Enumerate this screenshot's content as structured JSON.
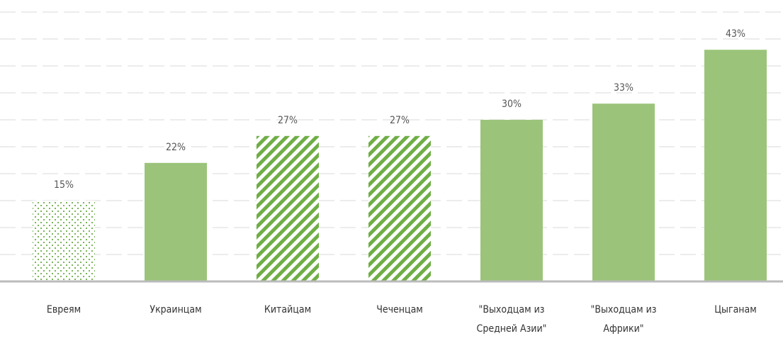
{
  "chart_data": {
    "type": "bar",
    "categories": [
      "Евреям",
      "Украинцам",
      "Китайцам",
      "Чеченцам",
      "\"Выходцам из Средней Азии\"",
      "\"Выходцам из Африки\"",
      "Цыганам"
    ],
    "values": [
      15,
      22,
      27,
      27,
      30,
      33,
      43
    ],
    "value_labels": [
      "15%",
      "22%",
      "27%",
      "27%",
      "30%",
      "33%",
      "43%"
    ],
    "patterns": [
      "dots",
      "solid",
      "stripes",
      "stripes",
      "solid",
      "solid",
      "solid"
    ],
    "color": "#9bc47a",
    "ylim": [
      0,
      50
    ],
    "yticks": [
      0,
      5,
      10,
      15,
      20,
      25,
      30,
      35,
      40,
      45,
      50
    ],
    "grid": true
  }
}
